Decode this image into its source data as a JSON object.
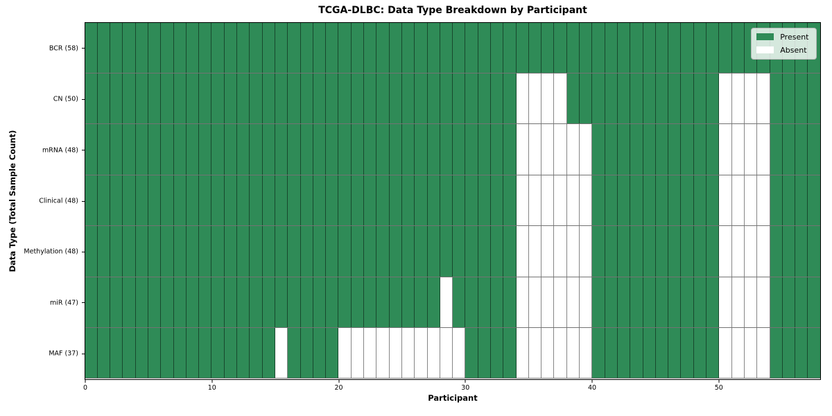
{
  "chart_data": {
    "type": "heatmap",
    "title": "TCGA-DLBC: Data Type Breakdown by Participant",
    "xlabel": "Participant",
    "ylabel": "Data Type (Total Sample Count)",
    "n_participants": 58,
    "xlim": [
      0,
      58
    ],
    "x_ticks": [
      0,
      10,
      20,
      30,
      40,
      50
    ],
    "grid": "cell-edges",
    "legend_position": "upper-right",
    "colors": {
      "present": "#2f8b57",
      "absent": "#ffffff"
    },
    "legend": [
      {
        "label": "Present",
        "color": "#2f8b57"
      },
      {
        "label": "Absent",
        "color": "#ffffff"
      }
    ],
    "rows": [
      {
        "label": "BCR (58)",
        "total_present": 58,
        "absent_participants": []
      },
      {
        "label": "CN (50)",
        "total_present": 50,
        "absent_participants": [
          34,
          35,
          36,
          37,
          50,
          51,
          52,
          53
        ]
      },
      {
        "label": "mRNA (48)",
        "total_present": 48,
        "absent_participants": [
          34,
          35,
          36,
          37,
          38,
          39,
          50,
          51,
          52,
          53
        ]
      },
      {
        "label": "Clinical (48)",
        "total_present": 48,
        "absent_participants": [
          34,
          35,
          36,
          37,
          38,
          39,
          50,
          51,
          52,
          53
        ]
      },
      {
        "label": "Methylation (48)",
        "total_present": 48,
        "absent_participants": [
          34,
          35,
          36,
          37,
          38,
          39,
          50,
          51,
          52,
          53
        ]
      },
      {
        "label": "miR (47)",
        "total_present": 47,
        "absent_participants": [
          28,
          34,
          35,
          36,
          37,
          38,
          39,
          50,
          51,
          52,
          53
        ]
      },
      {
        "label": "MAF (37)",
        "total_present": 37,
        "absent_participants": [
          15,
          20,
          21,
          22,
          23,
          24,
          25,
          26,
          27,
          28,
          29,
          34,
          35,
          36,
          37,
          38,
          39,
          50,
          51,
          52,
          53
        ]
      }
    ]
  }
}
